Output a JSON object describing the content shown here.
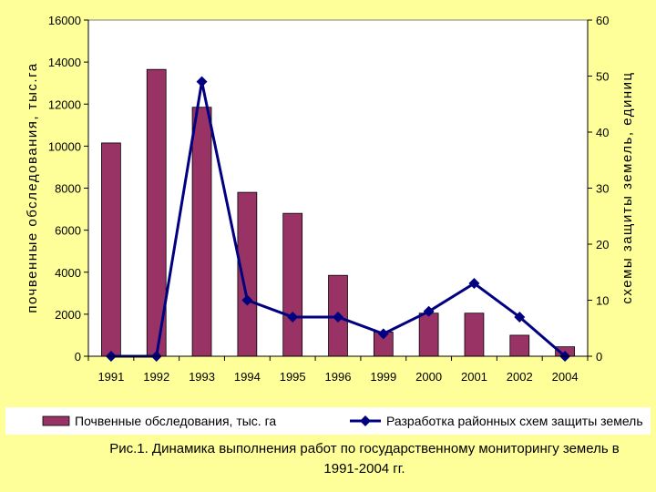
{
  "chart_data": {
    "type": "bar",
    "categories": [
      "1991",
      "1992",
      "1993",
      "1994",
      "1995",
      "1996",
      "1999",
      "2000",
      "2001",
      "2002",
      "2004"
    ],
    "series": [
      {
        "name": "Почвенные обследования, тыс. га",
        "type": "bar",
        "axis": "left",
        "color": "#993366",
        "values": [
          10150,
          13650,
          11850,
          7800,
          6800,
          3850,
          1150,
          2050,
          2050,
          1000,
          450
        ]
      },
      {
        "name": "Разработка районных схем защиты земель",
        "type": "line",
        "axis": "right",
        "color": "#000080",
        "values": [
          0,
          0,
          49,
          10,
          7,
          7,
          4,
          8,
          13,
          7,
          0
        ]
      }
    ],
    "ylabel": "почвенные обследования, тыс.га",
    "y2label": "схемы защиты земель, единиц",
    "ylim": [
      0,
      16000
    ],
    "y2lim": [
      0,
      60
    ],
    "yticks": [
      "0",
      "2000",
      "4000",
      "6000",
      "8000",
      "10000",
      "12000",
      "14000",
      "16000"
    ],
    "y2ticks": [
      "0",
      "10",
      "20",
      "30",
      "40",
      "50",
      "60"
    ],
    "grid": false,
    "legend": "bottom"
  },
  "caption": {
    "line1": "Рис.1. Динамика выполнения работ по государственному мониторингу земель в",
    "line2": "1991-2004 гг."
  }
}
